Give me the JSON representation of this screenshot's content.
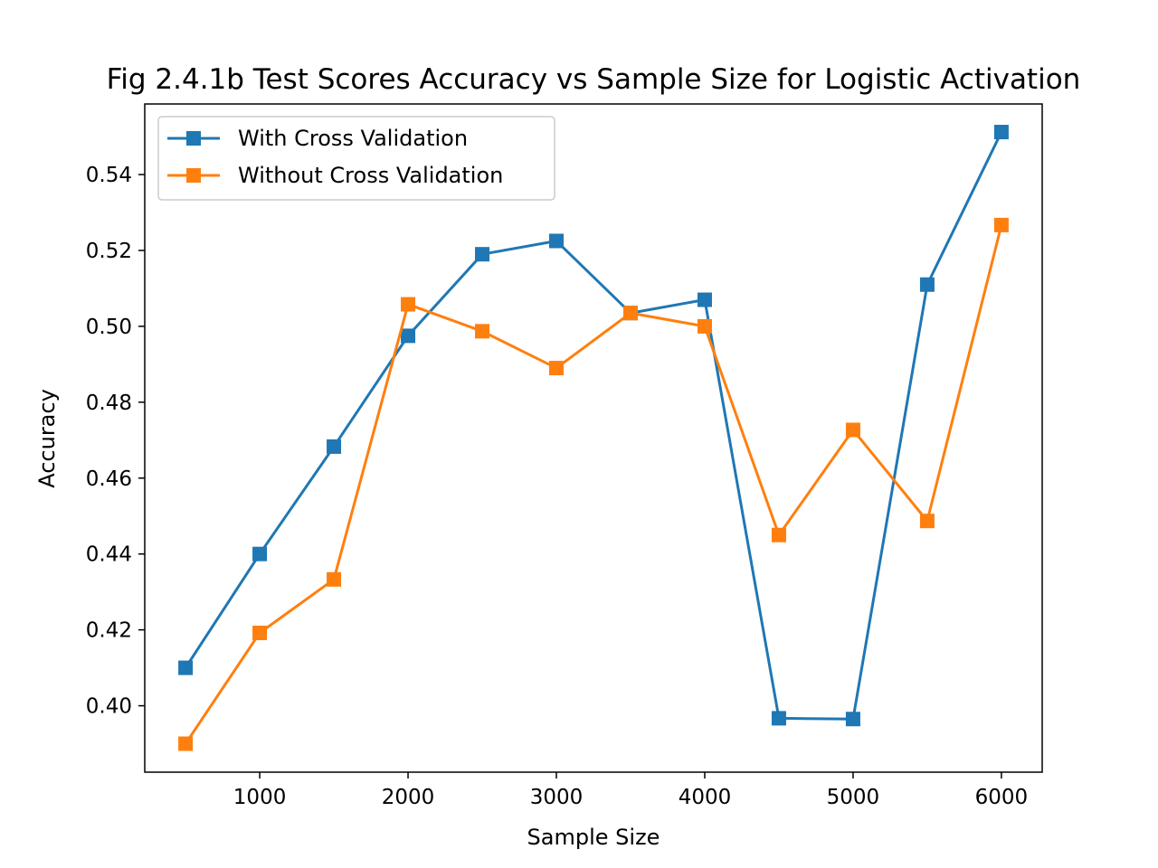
{
  "chart_data": {
    "type": "line",
    "title": "Fig 2.4.1b Test Scores Accuracy vs Sample Size for Logistic Activation",
    "xlabel": "Sample Size",
    "ylabel": "Accuracy",
    "x": [
      500,
      1000,
      1500,
      2000,
      2500,
      3000,
      3500,
      4000,
      4500,
      5000,
      5500,
      6000
    ],
    "xlim": [
      225,
      6275
    ],
    "ylim": [
      0.3825,
      0.5586
    ],
    "xticks": [
      1000,
      2000,
      3000,
      4000,
      5000,
      6000
    ],
    "xtick_labels": [
      "1000",
      "2000",
      "3000",
      "4000",
      "5000",
      "6000"
    ],
    "yticks": [
      0.4,
      0.42,
      0.44,
      0.46,
      0.48,
      0.5,
      0.52,
      0.54
    ],
    "ytick_labels": [
      "0.40",
      "0.42",
      "0.44",
      "0.46",
      "0.48",
      "0.50",
      "0.52",
      "0.54"
    ],
    "grid": false,
    "legend_position": "top-left",
    "marker": "square",
    "series": [
      {
        "name": "With Cross Validation",
        "color": "#1f77b4",
        "values": [
          0.41,
          0.44,
          0.4683,
          0.4975,
          0.519,
          0.5225,
          0.5035,
          0.507,
          0.3967,
          0.3965,
          0.511,
          0.5512
        ]
      },
      {
        "name": "Without Cross Validation",
        "color": "#ff7f0e",
        "values": [
          0.39,
          0.4192,
          0.4333,
          0.5058,
          0.4987,
          0.489,
          0.5035,
          0.5,
          0.445,
          0.4727,
          0.4487,
          0.5267
        ]
      }
    ]
  }
}
